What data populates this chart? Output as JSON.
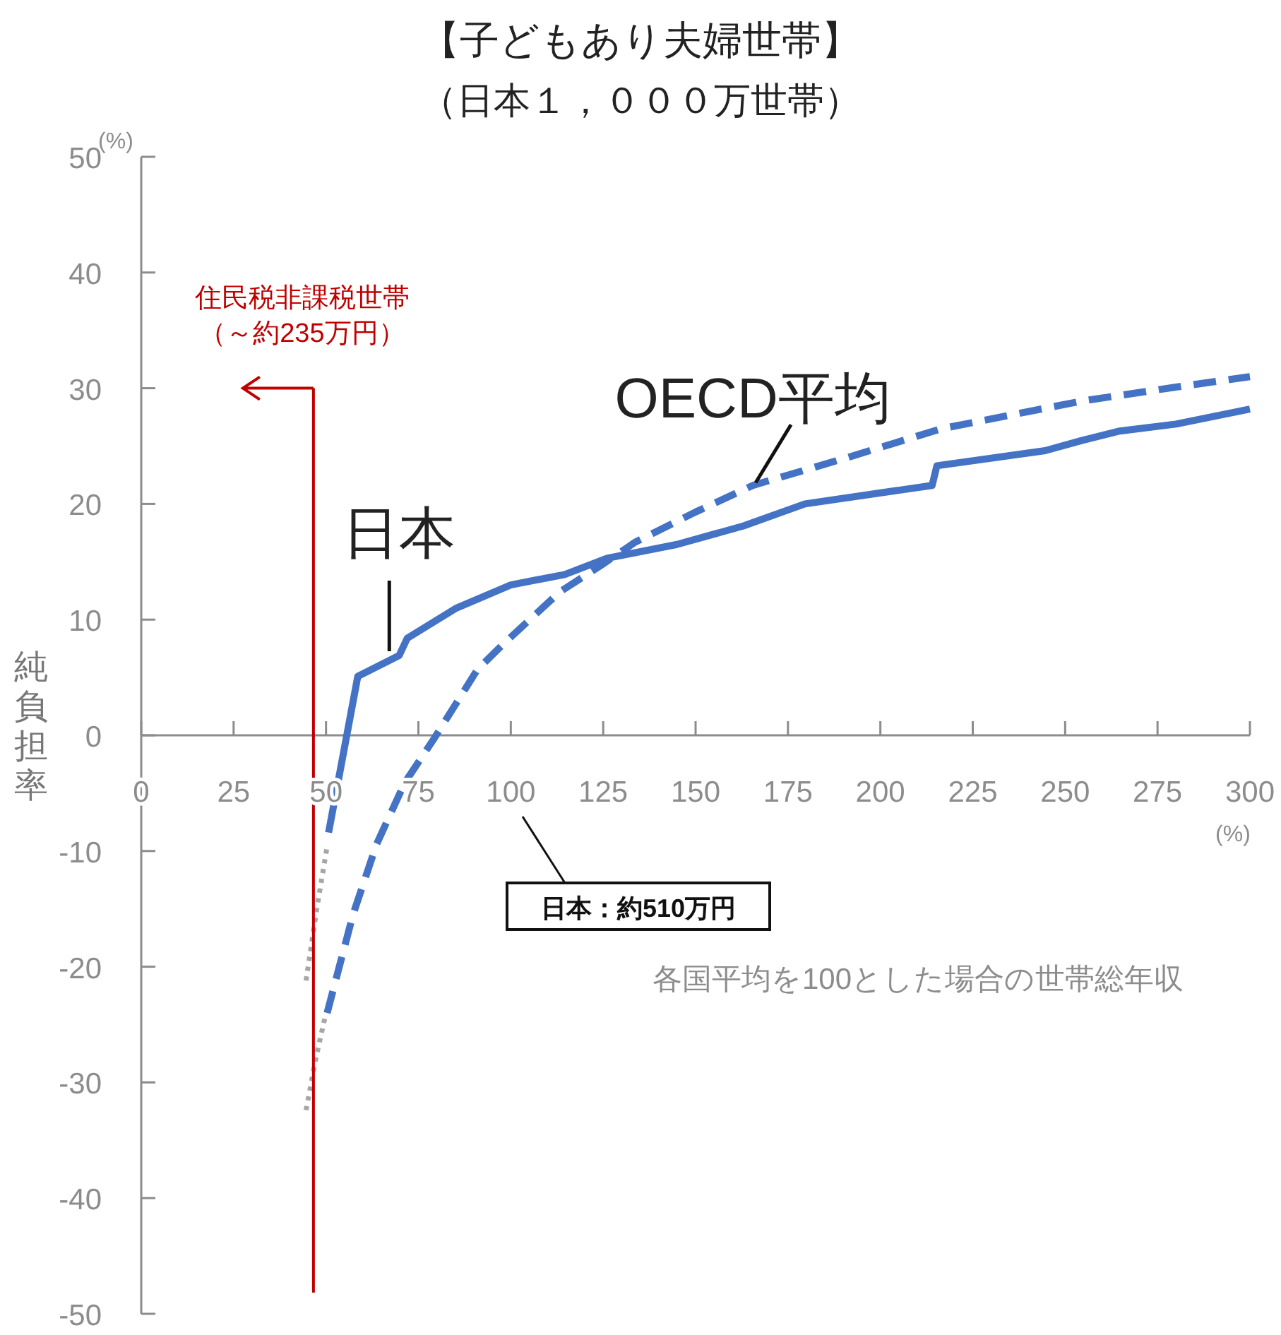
{
  "chart_data": {
    "type": "line",
    "title": "【子どもあり夫婦世帯】",
    "subtitle": "（日本１，０００万世帯）",
    "xlabel": "各国平均を100とした場合の世帯総年収",
    "ylabel": "純負担率",
    "xlim": [
      0,
      300
    ],
    "xticks": [
      0,
      25,
      50,
      75,
      100,
      125,
      150,
      175,
      200,
      225,
      250,
      275,
      300
    ],
    "ylim": [
      -50,
      50
    ],
    "yticks": [
      -50,
      -40,
      -30,
      -20,
      -10,
      0,
      10,
      20,
      30,
      40,
      50
    ],
    "series": [
      {
        "name": "日本",
        "color": "#4472c4",
        "line_style": "solid",
        "x": [
          50.7,
          58.6,
          69.8,
          72,
          85.3,
          100,
          114.6,
          126,
          145,
          163,
          179.6,
          214,
          215.3,
          244.6,
          254.7,
          264.8,
          280,
          300
        ],
        "values": [
          -8.4,
          5.1,
          6.9,
          8.4,
          11,
          13,
          13.9,
          15.3,
          16.5,
          18.1,
          20,
          21.6,
          23.3,
          24.6,
          25.5,
          26.3,
          26.9,
          28.2
        ]
      },
      {
        "name": "OECD平均",
        "color": "#4472c4",
        "line_style": "dashed",
        "x": [
          50.3,
          57.3,
          63.7,
          71.3,
          79,
          91,
          98,
          113.3,
          124,
          133.7,
          150,
          165.5,
          191,
          216.5,
          254.7,
          280,
          300
        ],
        "values": [
          -24,
          -15.5,
          -9.4,
          -4.1,
          -0.4,
          5.7,
          7.9,
          12.4,
          14.6,
          16.7,
          19.3,
          21.6,
          24,
          26.5,
          28.9,
          30.1,
          31
        ]
      },
      {
        "color": "#a6a6a6",
        "line_style": "dotted",
        "x": [
          44.6,
          47.5,
          50.3
        ],
        "values": [
          -21.2,
          -15,
          -9.6
        ]
      },
      {
        "color": "#a6a6a6",
        "line_style": "dotted",
        "x": [
          44.6,
          47.2,
          49.7
        ],
        "values": [
          -32.4,
          -28,
          -24.4
        ]
      }
    ],
    "ref_lines": [
      {
        "axis": "x",
        "value": 46.6,
        "label": "住民税非課税世帯（～約235万円）",
        "color": "#c00000"
      }
    ],
    "annotations": [
      "日本：約510万円",
      "(%)",
      "(%)"
    ]
  }
}
